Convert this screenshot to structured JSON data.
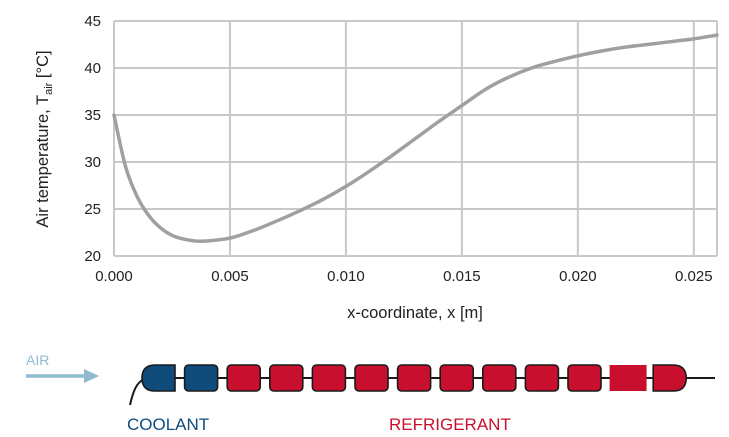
{
  "chart_data": {
    "type": "line",
    "xlabel": "x-coordinate, x [m]",
    "ylabel": "Air temperature, T",
    "ylabel_subscript": "air",
    "ylabel_unit": " [°C]",
    "xlim": [
      0.0,
      0.026
    ],
    "ylim": [
      20,
      45
    ],
    "xticks": [
      "0.000",
      "0.005",
      "0.010",
      "0.015",
      "0.020",
      "0.025"
    ],
    "xtick_values": [
      0.0,
      0.005,
      0.01,
      0.015,
      0.02,
      0.025
    ],
    "yticks": [
      "20",
      "25",
      "30",
      "35",
      "40",
      "45"
    ],
    "ytick_values": [
      20,
      25,
      30,
      35,
      40,
      45
    ],
    "grid": true,
    "line_color": "#a0a0a0",
    "grid_color": "#c8c8c8",
    "series": [
      {
        "x": [
          0.0,
          0.0005,
          0.001,
          0.0015,
          0.002,
          0.0025,
          0.003,
          0.0035,
          0.004,
          0.005,
          0.006,
          0.007,
          0.008,
          0.009,
          0.01,
          0.011,
          0.012,
          0.013,
          0.014,
          0.015,
          0.016,
          0.017,
          0.018,
          0.019,
          0.02,
          0.021,
          0.022,
          0.023,
          0.024,
          0.025,
          0.026
        ],
        "y": [
          35.0,
          29.5,
          26.3,
          24.3,
          23.0,
          22.2,
          21.8,
          21.6,
          21.6,
          21.9,
          22.7,
          23.7,
          24.8,
          26.0,
          27.4,
          29.0,
          30.7,
          32.5,
          34.3,
          36.0,
          37.7,
          39.0,
          40.0,
          40.7,
          41.3,
          41.8,
          42.2,
          42.5,
          42.8,
          43.1,
          43.5
        ]
      }
    ]
  },
  "diagram": {
    "air_label": "AIR",
    "coolant_label": "COOLANT",
    "refrigerant_label": "REFRIGERANT",
    "colors": {
      "air": "#8fbad0",
      "coolant": "#0f4c7c",
      "refrigerant": "#c8102e",
      "outline": "#1a1a1a"
    }
  }
}
